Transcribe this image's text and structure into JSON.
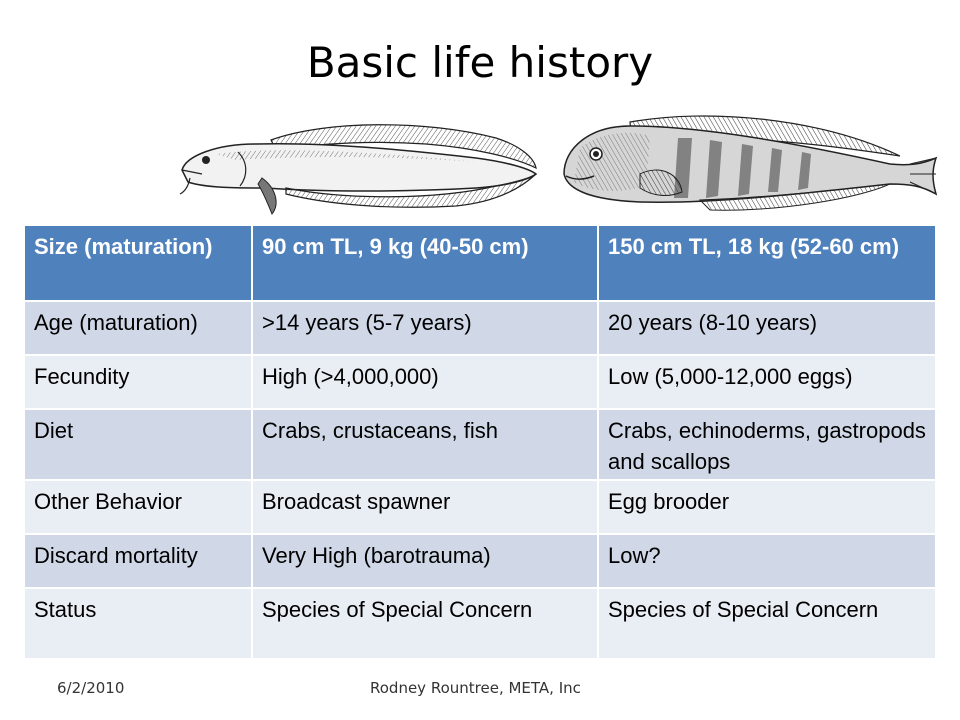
{
  "slide": {
    "title": "Basic life history",
    "footer_date": "6/2/2010",
    "footer_author": "Rodney Rountree,  META, Inc"
  },
  "images": {
    "left_fish": "cusk-fish-illustration",
    "right_fish": "wolffish-illustration"
  },
  "table": {
    "rows": [
      [
        "Size (maturation)",
        "90 cm TL, 9 kg (40-50 cm)",
        "150 cm TL, 18 kg (52-60 cm)"
      ],
      [
        "Age (maturation)",
        ">14 years (5-7 years)",
        "20 years (8-10 years)"
      ],
      [
        "Fecundity",
        "High (>4,000,000)",
        "Low (5,000-12,000 eggs)"
      ],
      [
        "Diet",
        "Crabs, crustaceans, fish",
        "Crabs, echinoderms, gastropods and scallops"
      ],
      [
        "Other Behavior",
        "Broadcast spawner",
        "Egg brooder"
      ],
      [
        "Discard mortality",
        "Very High (barotrauma)",
        "Low?"
      ],
      [
        "Status",
        "Species of Special Concern",
        "Species of Special Concern"
      ]
    ]
  },
  "colors": {
    "header_fill": "#4f81bd",
    "row_dark": "#d0d8e8",
    "row_light": "#e9edf4"
  }
}
